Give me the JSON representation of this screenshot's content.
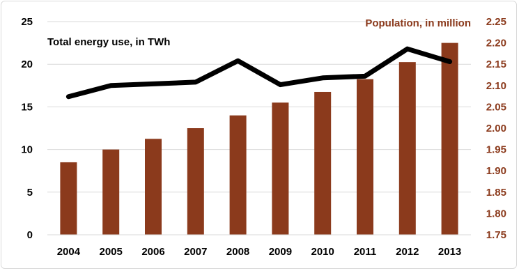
{
  "chart_data": {
    "type": "bar+line",
    "categories": [
      "2004",
      "2005",
      "2006",
      "2007",
      "2008",
      "2009",
      "2010",
      "2011",
      "2012",
      "2013"
    ],
    "series": [
      {
        "name": "Population, in million",
        "type": "bar",
        "axis": "right",
        "values": [
          1.92,
          1.95,
          1.975,
          2.0,
          2.03,
          2.06,
          2.085,
          2.115,
          2.155,
          2.2
        ]
      },
      {
        "name": "Total energy use, in TWh",
        "type": "line",
        "axis": "left",
        "values": [
          16.2,
          17.5,
          17.7,
          17.9,
          20.4,
          17.6,
          18.4,
          18.6,
          21.8,
          20.3
        ]
      }
    ],
    "y_left": {
      "ylim": [
        0,
        25
      ],
      "ticks": [
        "0",
        "5",
        "10",
        "15",
        "20",
        "25"
      ]
    },
    "y_right": {
      "ylim": [
        1.75,
        2.25
      ],
      "ticks": [
        "1.75",
        "1.80",
        "1.85",
        "1.90",
        "1.95",
        "2.00",
        "2.05",
        "2.10",
        "2.15",
        "2.20",
        "2.25"
      ]
    },
    "grid": "horizontal",
    "colors": {
      "bar": "#8b3a1c",
      "line": "#000000",
      "grid": "#d9d9d9",
      "right_axis_text": "#8b3a1c"
    }
  }
}
